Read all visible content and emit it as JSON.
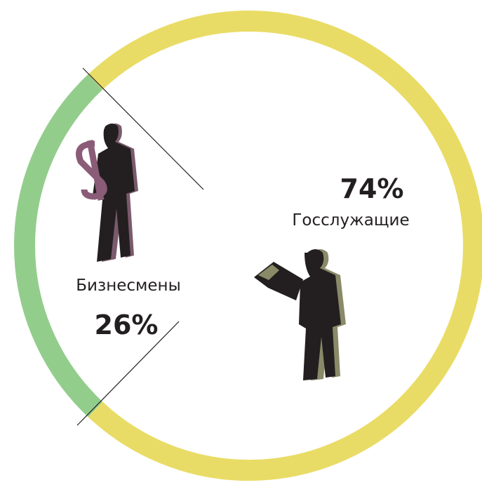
{
  "chart_data": {
    "type": "pie",
    "categories": [
      "Бизнесмены",
      "Госслужащие"
    ],
    "values": [
      26,
      74
    ],
    "value_labels": [
      "26%",
      "74%"
    ],
    "colors": [
      "#93cd8c",
      "#e9dc66"
    ]
  }
}
